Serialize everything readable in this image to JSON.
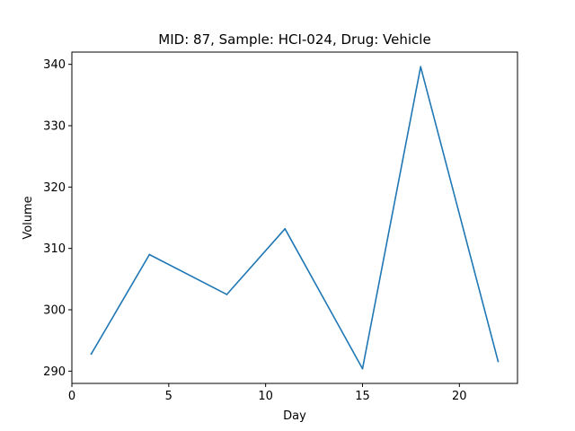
{
  "chart_data": {
    "type": "line",
    "title": "MID: 87, Sample: HCI-024, Drug: Vehicle",
    "xlabel": "Day",
    "ylabel": "Volume",
    "xlim": [
      0,
      23
    ],
    "ylim": [
      288,
      342
    ],
    "xticks": [
      0,
      5,
      10,
      15,
      20
    ],
    "yticks": [
      290,
      300,
      310,
      320,
      330,
      340
    ],
    "grid": false,
    "series": [
      {
        "color": "#1f77b4",
        "x": [
          1,
          4,
          8,
          11,
          15,
          18,
          22
        ],
        "y": [
          292.8,
          309.0,
          302.5,
          313.2,
          290.4,
          339.6,
          291.6
        ]
      }
    ]
  }
}
